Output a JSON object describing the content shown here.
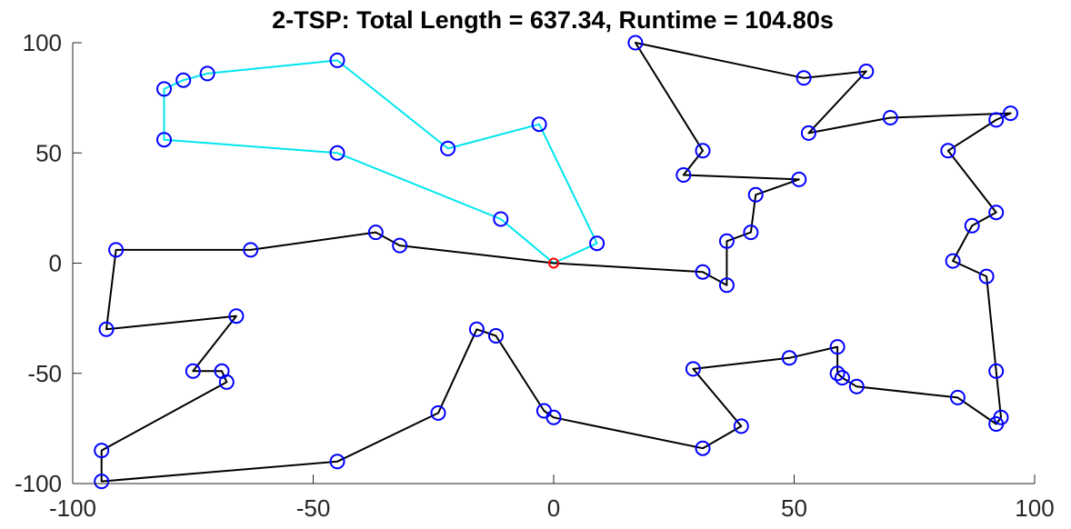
{
  "chart_data": {
    "type": "line",
    "title": "2-TSP: Total Length = 637.34, Runtime = 104.80s",
    "xlabel": "",
    "ylabel": "",
    "xlim": [
      -100,
      100
    ],
    "ylim": [
      -100,
      100
    ],
    "x_ticks": [
      -100,
      -50,
      0,
      50,
      100
    ],
    "y_ticks": [
      -100,
      -50,
      0,
      50,
      100
    ],
    "x_tick_labels": [
      "-100",
      "-50",
      "0",
      "50",
      "100"
    ],
    "y_tick_labels": [
      "-100",
      "-50",
      "0",
      "50",
      "100"
    ],
    "grid": false,
    "depot": {
      "x": 0,
      "y": 0,
      "color": "#ff0000"
    },
    "node_color": "#0000ff",
    "series": [
      {
        "color": "#00e5ee",
        "points": [
          [
            0,
            0
          ],
          [
            9,
            9
          ],
          [
            -3,
            63
          ],
          [
            -22,
            52
          ],
          [
            -45,
            92
          ],
          [
            -72,
            86
          ],
          [
            -77,
            83
          ],
          [
            -81,
            79
          ],
          [
            -81,
            56
          ],
          [
            -45,
            50
          ],
          [
            -11,
            20
          ],
          [
            0,
            0
          ]
        ]
      },
      {
        "color": "#000000",
        "points": [
          [
            0,
            0
          ],
          [
            -32,
            8
          ],
          [
            -37,
            14
          ],
          [
            -63,
            6
          ],
          [
            -91,
            6
          ],
          [
            -93,
            -30
          ],
          [
            -66,
            -24
          ],
          [
            -75,
            -49
          ],
          [
            -69,
            -49
          ],
          [
            -68,
            -54
          ],
          [
            -94,
            -85
          ],
          [
            -94,
            -99
          ],
          [
            -45,
            -90
          ],
          [
            -24,
            -68
          ],
          [
            -16,
            -30
          ],
          [
            -12,
            -33
          ],
          [
            -2,
            -67
          ],
          [
            0,
            -70
          ],
          [
            31,
            -84
          ],
          [
            39,
            -74
          ],
          [
            29,
            -48
          ],
          [
            49,
            -43
          ],
          [
            59,
            -38
          ],
          [
            59,
            -50
          ],
          [
            60,
            -52
          ],
          [
            63,
            -56
          ],
          [
            84,
            -61
          ],
          [
            92,
            -73
          ],
          [
            93,
            -70
          ],
          [
            92,
            -49
          ],
          [
            90,
            -6
          ],
          [
            83,
            1
          ],
          [
            87,
            17
          ],
          [
            92,
            23
          ],
          [
            82,
            51
          ],
          [
            92,
            65
          ],
          [
            95,
            68
          ],
          [
            70,
            66
          ],
          [
            53,
            59
          ],
          [
            65,
            87
          ],
          [
            52,
            84
          ],
          [
            17,
            100
          ],
          [
            31,
            51
          ],
          [
            27,
            40
          ],
          [
            51,
            38
          ],
          [
            42,
            31
          ],
          [
            41,
            14
          ],
          [
            36,
            10
          ],
          [
            36,
            -10
          ],
          [
            31,
            -4
          ],
          [
            0,
            0
          ]
        ]
      }
    ]
  }
}
